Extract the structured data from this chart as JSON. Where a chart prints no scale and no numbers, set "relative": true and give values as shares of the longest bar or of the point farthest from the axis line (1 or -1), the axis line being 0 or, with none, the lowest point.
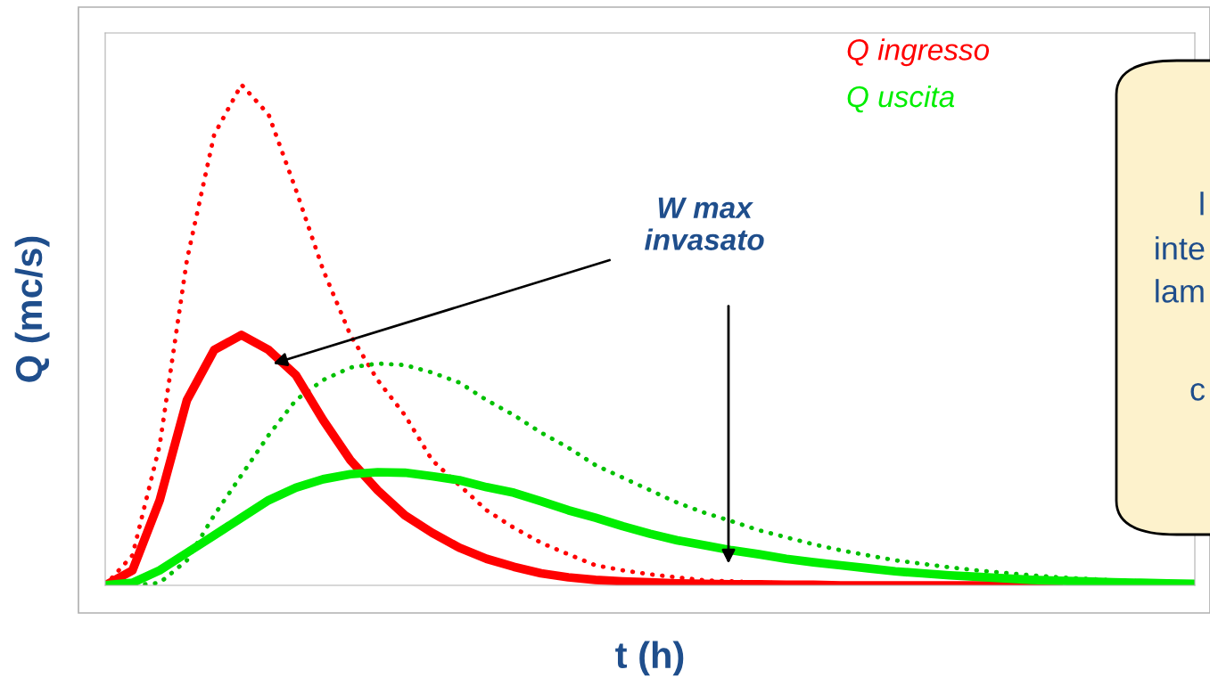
{
  "chart_data": {
    "type": "line",
    "relative": true,
    "xlabel": "t (h)",
    "ylabel": "Q (mc/s)",
    "legend": "top right",
    "grid": false,
    "categories": [
      null,
      null,
      null,
      null,
      null,
      null,
      null,
      null,
      null,
      null,
      null,
      null,
      null,
      null,
      null,
      null,
      null,
      null,
      null,
      null,
      null,
      null,
      null,
      null,
      null,
      null,
      null,
      null,
      null,
      null,
      null,
      null,
      null,
      null,
      null,
      null,
      null,
      null,
      null,
      null,
      null
    ],
    "series": [
      {
        "color": "#ff0000",
        "line_style": "dotted",
        "values": [
          0,
          0.06,
          0.28,
          0.65,
          0.9,
          1.0,
          0.94,
          0.79,
          0.63,
          0.5,
          0.41,
          0.34,
          0.25,
          0.2,
          0.15,
          0.115,
          0.085,
          0.062,
          0.04,
          0.03,
          0.022,
          0.016,
          0.01,
          0.008,
          0.006,
          0.004,
          0.003,
          0.002,
          0.001,
          0.001,
          0,
          0,
          0,
          0,
          0,
          0,
          null,
          null,
          null,
          null,
          null
        ]
      },
      {
        "color": "#00c000",
        "line_style": "dotted",
        "values": [
          0,
          0,
          0.005,
          0.05,
          0.14,
          0.22,
          0.3,
          0.37,
          0.41,
          0.435,
          0.443,
          0.44,
          0.425,
          0.405,
          0.37,
          0.34,
          0.305,
          0.275,
          0.24,
          0.215,
          0.19,
          0.165,
          0.145,
          0.128,
          0.11,
          0.096,
          0.082,
          0.07,
          0.06,
          0.05,
          0.043,
          0.036,
          0.03,
          0.025,
          0.02,
          0.016,
          0.013,
          0.01,
          0.008,
          0.006,
          0.004
        ]
      },
      {
        "name": "Q ingresso",
        "color": "#ff0000",
        "line_style": "solid",
        "values": [
          0,
          0.03,
          0.17,
          0.37,
          0.47,
          0.5,
          0.47,
          0.42,
          0.33,
          0.25,
          0.19,
          0.14,
          0.105,
          0.075,
          0.053,
          0.037,
          0.024,
          0.016,
          0.011,
          0.008,
          0.006,
          0.004,
          0.003,
          0.002,
          0.002,
          0.001,
          0.001,
          0,
          0,
          0,
          0,
          0,
          0,
          0,
          0,
          0,
          null,
          null,
          null,
          null,
          null
        ]
      },
      {
        "name": "Q uscita",
        "color": "#00ee00",
        "line_style": "solid",
        "values": [
          0,
          0.005,
          0.03,
          0.065,
          0.1,
          0.135,
          0.17,
          0.195,
          0.212,
          0.222,
          0.226,
          0.225,
          0.218,
          0.21,
          0.196,
          0.185,
          0.168,
          0.15,
          0.135,
          0.118,
          0.103,
          0.09,
          0.08,
          0.07,
          0.062,
          0.053,
          0.046,
          0.04,
          0.034,
          0.028,
          0.024,
          0.02,
          0.017,
          0.014,
          0.011,
          0.009,
          0.008,
          0.006,
          0.005,
          0.004,
          0.003
        ]
      }
    ],
    "annotations": [
      "W max\ninvasato",
      "l",
      "inte",
      "lam",
      "c"
    ]
  }
}
